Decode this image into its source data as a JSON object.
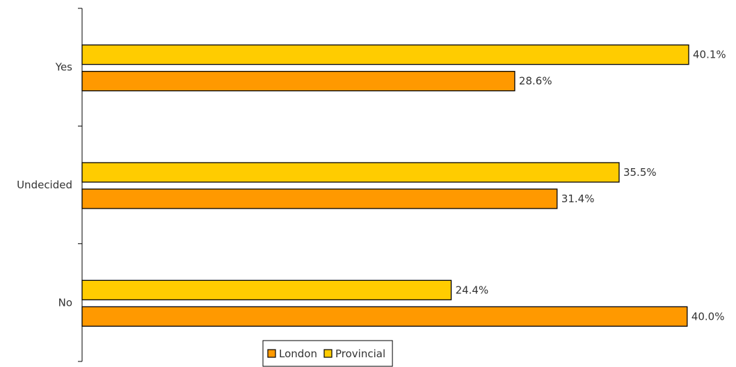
{
  "chart_data": {
    "type": "bar",
    "orientation": "horizontal",
    "categories": [
      "Yes",
      "Undecided",
      "No"
    ],
    "series": [
      {
        "name": "Provincial",
        "values": [
          40.1,
          35.5,
          24.4
        ],
        "labels": [
          "40.1%",
          "35.5%",
          "24.4%"
        ],
        "color": "#FFCC00"
      },
      {
        "name": "London",
        "values": [
          28.6,
          31.4,
          40.0
        ],
        "labels": [
          "28.6%",
          "31.4%",
          "40.0%"
        ],
        "color": "#FF9900"
      }
    ],
    "legend_order": [
      "London",
      "Provincial"
    ],
    "legend_position": "bottom-center",
    "xlim": [
      0,
      40.1
    ],
    "xaxis_visible": false,
    "grid": false,
    "title": "",
    "xlabel": "",
    "ylabel": ""
  }
}
